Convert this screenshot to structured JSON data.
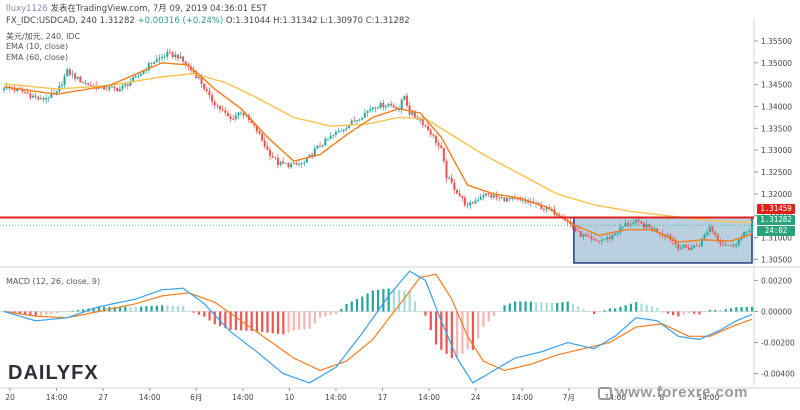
{
  "header": {
    "user": "lluxy1126",
    "published": "发表在TradingView.com, 7月 09, 2019 04:36:01 EST",
    "symbol_line": "FX_IDC:USDCAD, 240",
    "last": "1.31282",
    "change": "+0.00316 (+0.24%)",
    "ohlc": "O:1.31044 H:1.31342 L:1.30970 C:1.31282"
  },
  "legend": {
    "pair": "美元/加元, 240, IDC",
    "ema1": "EMA (10, close)",
    "ema2": "EMA (60, close)",
    "macd": "MACD (12, 26, close, 9)"
  },
  "price_tags": {
    "resistance": "1.31459",
    "last": "1.31282",
    "timer": "24:02"
  },
  "brand": {
    "name": "DAILYFX"
  },
  "watermark": "www.forexre.com",
  "colors": {
    "up": "#26a69a",
    "down": "#ef5350",
    "ema_fast": "#f57c1f",
    "ema_slow": "#f6c34f",
    "resistance": "#e0201b",
    "box_fill": "#7fa9c9",
    "box_border": "#1f3f7a",
    "macd_line": "#3aa0e8",
    "signal_line": "#f57c1f",
    "hist_up_strong": "#26a69a",
    "hist_up_weak": "#a6dcd6",
    "hist_down_strong": "#ef5350",
    "hist_down_weak": "#f6b4b2"
  },
  "chart_data": [
    {
      "type": "candlestick",
      "title": "美元/加元, 240, IDC",
      "ylim": [
        1.3035,
        1.3575
      ],
      "y_ticks": [
        1.305,
        1.31,
        1.315,
        1.32,
        1.325,
        1.33,
        1.335,
        1.34,
        1.345,
        1.35,
        1.355
      ],
      "x_ticks": [
        "20",
        "14:00",
        "27",
        "14:00",
        "6月",
        "14:00",
        "10",
        "14:00",
        "17",
        "14:00",
        "24",
        "14:00",
        "7月",
        "14:00",
        "8",
        "14:00"
      ],
      "close_path": [
        [
          0,
          1.3445
        ],
        [
          8,
          1.3432
        ],
        [
          14,
          1.3415
        ],
        [
          20,
          1.343
        ],
        [
          24,
          1.348
        ],
        [
          30,
          1.3455
        ],
        [
          36,
          1.3443
        ],
        [
          44,
          1.344
        ],
        [
          50,
          1.3465
        ],
        [
          56,
          1.35
        ],
        [
          62,
          1.352
        ],
        [
          66,
          1.3515
        ],
        [
          70,
          1.349
        ],
        [
          74,
          1.3465
        ],
        [
          78,
          1.342
        ],
        [
          82,
          1.3395
        ],
        [
          86,
          1.337
        ],
        [
          90,
          1.339
        ],
        [
          96,
          1.3345
        ],
        [
          100,
          1.33
        ],
        [
          104,
          1.327
        ],
        [
          110,
          1.3265
        ],
        [
          114,
          1.327
        ],
        [
          118,
          1.33
        ],
        [
          124,
          1.333
        ],
        [
          130,
          1.3355
        ],
        [
          136,
          1.338
        ],
        [
          140,
          1.34
        ],
        [
          146,
          1.3405
        ],
        [
          150,
          1.3395
        ],
        [
          152,
          1.3425
        ],
        [
          154,
          1.3385
        ],
        [
          158,
          1.337
        ],
        [
          162,
          1.334
        ],
        [
          166,
          1.33
        ],
        [
          168,
          1.324
        ],
        [
          172,
          1.3205
        ],
        [
          176,
          1.317
        ],
        [
          182,
          1.32
        ],
        [
          188,
          1.319
        ],
        [
          194,
          1.3185
        ],
        [
          200,
          1.318
        ],
        [
          206,
          1.3165
        ],
        [
          212,
          1.315
        ],
        [
          218,
          1.311
        ],
        [
          224,
          1.309
        ],
        [
          230,
          1.31
        ],
        [
          236,
          1.313
        ],
        [
          240,
          1.3135
        ],
        [
          246,
          1.312
        ],
        [
          252,
          1.3105
        ],
        [
          256,
          1.308
        ],
        [
          260,
          1.3075
        ],
        [
          264,
          1.3085
        ],
        [
          268,
          1.3125
        ],
        [
          272,
          1.309
        ],
        [
          276,
          1.308
        ],
        [
          280,
          1.31
        ],
        [
          284,
          1.3128
        ]
      ],
      "ema_fast": [
        [
          0,
          1.3445
        ],
        [
          20,
          1.3428
        ],
        [
          40,
          1.3448
        ],
        [
          60,
          1.35
        ],
        [
          70,
          1.3495
        ],
        [
          80,
          1.344
        ],
        [
          90,
          1.3395
        ],
        [
          100,
          1.333
        ],
        [
          110,
          1.3275
        ],
        [
          120,
          1.329
        ],
        [
          130,
          1.3335
        ],
        [
          140,
          1.3375
        ],
        [
          150,
          1.3395
        ],
        [
          158,
          1.3385
        ],
        [
          166,
          1.333
        ],
        [
          176,
          1.322
        ],
        [
          186,
          1.32
        ],
        [
          196,
          1.319
        ],
        [
          206,
          1.317
        ],
        [
          216,
          1.313
        ],
        [
          226,
          1.3105
        ],
        [
          236,
          1.3118
        ],
        [
          246,
          1.3118
        ],
        [
          256,
          1.309
        ],
        [
          266,
          1.3095
        ],
        [
          276,
          1.3092
        ],
        [
          284,
          1.3108
        ]
      ],
      "ema_slow": [
        [
          0,
          1.3452
        ],
        [
          20,
          1.344
        ],
        [
          40,
          1.3448
        ],
        [
          60,
          1.3468
        ],
        [
          72,
          1.3475
        ],
        [
          84,
          1.3455
        ],
        [
          96,
          1.342
        ],
        [
          110,
          1.3375
        ],
        [
          124,
          1.3355
        ],
        [
          138,
          1.336
        ],
        [
          150,
          1.3375
        ],
        [
          160,
          1.3372
        ],
        [
          170,
          1.3335
        ],
        [
          182,
          1.329
        ],
        [
          196,
          1.3245
        ],
        [
          210,
          1.32
        ],
        [
          224,
          1.3175
        ],
        [
          238,
          1.316
        ],
        [
          252,
          1.315
        ],
        [
          266,
          1.314
        ],
        [
          276,
          1.3136
        ],
        [
          284,
          1.3135
        ]
      ],
      "resistance": 1.31459,
      "range_box": {
        "y_top": 1.3146,
        "y_bottom": 1.3042,
        "x_from": 216,
        "x_to": 284
      },
      "last_price": 1.31282
    },
    {
      "type": "macd",
      "title": "MACD (12, 26, close, 9)",
      "ylim": [
        -0.0048,
        0.0028
      ],
      "y_ticks": [
        0.002,
        0.0,
        -0.002,
        -0.004
      ],
      "y_tick_labels": [
        "0.00200",
        "0.00000",
        "-0.00200",
        "-0.00400"
      ],
      "macd_line": [
        [
          0,
          0.0
        ],
        [
          12,
          -0.0006
        ],
        [
          24,
          -0.0004
        ],
        [
          36,
          0.0003
        ],
        [
          50,
          0.0008
        ],
        [
          60,
          0.0014
        ],
        [
          68,
          0.0015
        ],
        [
          76,
          0.0005
        ],
        [
          86,
          -0.0013
        ],
        [
          96,
          -0.0026
        ],
        [
          106,
          -0.004
        ],
        [
          116,
          -0.0046
        ],
        [
          126,
          -0.0036
        ],
        [
          136,
          -0.0014
        ],
        [
          146,
          0.001
        ],
        [
          154,
          0.0026
        ],
        [
          160,
          0.002
        ],
        [
          166,
          -0.0006
        ],
        [
          172,
          -0.003
        ],
        [
          178,
          -0.0046
        ],
        [
          184,
          -0.004
        ],
        [
          194,
          -0.003
        ],
        [
          204,
          -0.0026
        ],
        [
          214,
          -0.002
        ],
        [
          224,
          -0.0024
        ],
        [
          232,
          -0.0016
        ],
        [
          240,
          -0.0004
        ],
        [
          248,
          -0.0006
        ],
        [
          256,
          -0.0016
        ],
        [
          264,
          -0.0018
        ],
        [
          272,
          -0.0012
        ],
        [
          278,
          -0.0006
        ],
        [
          284,
          -0.0002
        ]
      ],
      "signal_line": [
        [
          0,
          0.0
        ],
        [
          12,
          -0.0003
        ],
        [
          24,
          -0.0004
        ],
        [
          36,
          0.0
        ],
        [
          50,
          0.0005
        ],
        [
          60,
          0.001
        ],
        [
          70,
          0.0012
        ],
        [
          80,
          0.0006
        ],
        [
          90,
          -0.0006
        ],
        [
          100,
          -0.0018
        ],
        [
          110,
          -0.003
        ],
        [
          120,
          -0.0038
        ],
        [
          130,
          -0.0032
        ],
        [
          140,
          -0.0018
        ],
        [
          150,
          0.0004
        ],
        [
          158,
          0.0022
        ],
        [
          164,
          0.0024
        ],
        [
          170,
          0.0008
        ],
        [
          176,
          -0.0016
        ],
        [
          182,
          -0.0032
        ],
        [
          190,
          -0.0038
        ],
        [
          200,
          -0.0034
        ],
        [
          210,
          -0.0028
        ],
        [
          220,
          -0.0024
        ],
        [
          230,
          -0.002
        ],
        [
          240,
          -0.001
        ],
        [
          250,
          -0.0008
        ],
        [
          260,
          -0.0016
        ],
        [
          268,
          -0.0016
        ],
        [
          276,
          -0.001
        ],
        [
          284,
          -0.0005
        ]
      ]
    }
  ]
}
